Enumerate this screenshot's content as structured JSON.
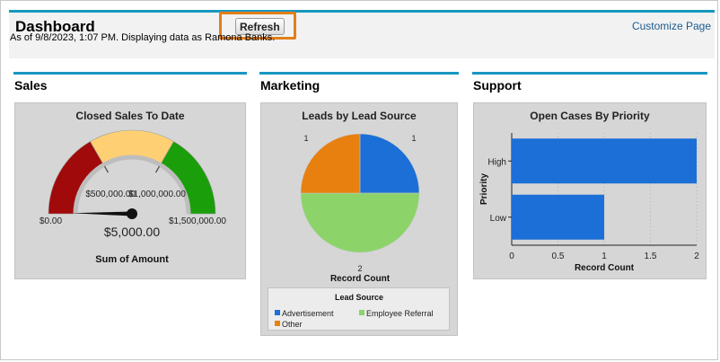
{
  "header": {
    "title": "Dashboard",
    "refresh_label": "Refresh",
    "customize_label": "Customize Page",
    "as_of": "As of 9/8/2023, 1:07 PM. Displaying data as Ramona Banks."
  },
  "columns": {
    "sales": "Sales",
    "marketing": "Marketing",
    "support": "Support"
  },
  "colors": {
    "accent": "#1797c0",
    "highlight": "#e07f1a",
    "gauge_red": "#a10a0a",
    "gauge_yellow": "#ffd073",
    "gauge_green": "#1a9e0a",
    "blue": "#1b6fd6",
    "green": "#8cd46a",
    "orange": "#e88010"
  },
  "gauge": {
    "title": "Closed Sales To Date",
    "min_label": "$0.00",
    "max_label": "$1,500,000.00",
    "mid_label_1": "$500,000.00",
    "mid_label_2": "$1,000,000.00",
    "value_label": "$5,000.00",
    "footer": "Sum of Amount",
    "value": 5000,
    "min": 0,
    "max": 1500000
  },
  "chart_data": [
    {
      "type": "pie",
      "title": "Leads by Lead Source",
      "xlabel": "Record Count",
      "legend_title": "Lead Source",
      "slices": [
        {
          "name": "Advertisement",
          "value": 1,
          "label": "1"
        },
        {
          "name": "Employee Referral",
          "value": 2,
          "label": "2"
        },
        {
          "name": "Other",
          "value": 1,
          "label": "1"
        }
      ]
    },
    {
      "type": "bar",
      "orientation": "horizontal",
      "title": "Open Cases By Priority",
      "categories": [
        "High",
        "Low"
      ],
      "values": [
        2,
        1
      ],
      "xlabel": "Record Count",
      "ylabel": "Priority",
      "xlim": [
        0,
        2
      ],
      "xticks": [
        "0",
        "0.5",
        "1",
        "1.5",
        "2"
      ]
    }
  ]
}
